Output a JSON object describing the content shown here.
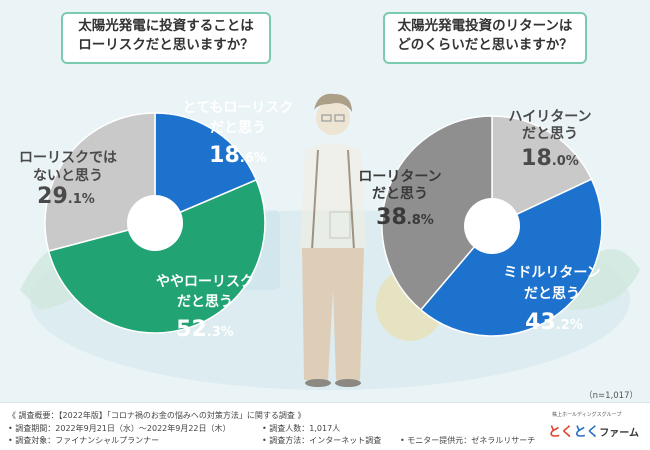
{
  "questions": {
    "q1": "太陽光発電に投資することは\nローリスクだと思いますか？",
    "q2": "太陽光発電投資のリターンは\nどのくらいだと思いますか？"
  },
  "sample_size": "（n=1,017）",
  "chart_data": [
    {
      "type": "pie",
      "donut": true,
      "start_angle_deg": 0,
      "direction": "clockwise",
      "slices": [
        {
          "label_lines": [
            "とてもローリスク",
            "だと思う"
          ],
          "value": 18.6,
          "value_int": "18",
          "value_dec": ".6",
          "color": "#1c72cc",
          "text_color": "#ffffff"
        },
        {
          "label_lines": [
            "ややローリスク",
            "だと思う"
          ],
          "value": 52.3,
          "value_int": "52",
          "value_dec": ".3",
          "color": "#22a374",
          "text_color": "#ffffff"
        },
        {
          "label_lines": [
            "ローリスクでは",
            "ないと思う"
          ],
          "value": 29.1,
          "value_int": "29",
          "value_dec": ".1",
          "color": "#c9c9c9",
          "text_color": "#4a4a4a"
        }
      ]
    },
    {
      "type": "pie",
      "donut": true,
      "start_angle_deg": 0,
      "direction": "clockwise",
      "slices": [
        {
          "label_lines": [
            "ハイリターン",
            "だと思う"
          ],
          "value": 18.0,
          "value_int": "18",
          "value_dec": ".0",
          "color": "#c9c9c9",
          "text_color": "#4a4a4a"
        },
        {
          "label_lines": [
            "ミドルリターン",
            "だと思う"
          ],
          "value": 43.2,
          "value_int": "43",
          "value_dec": ".2",
          "color": "#1c72cc",
          "text_color": "#ffffff"
        },
        {
          "label_lines": [
            "ローリターン",
            "だと思う"
          ],
          "value": 38.8,
          "value_int": "38",
          "value_dec": ".8",
          "color": "#8f8f8f",
          "text_color": "#3a3a3a"
        }
      ]
    }
  ],
  "footer": {
    "title": "《 調査概要：【2022年版】「コロナ禍のお金の悩みへの対策方法」に関する調査 》",
    "period": "• 調査期間：2022年9月21日（水）～2022年9月22日（木）",
    "target": "• 調査対象：ファイナンシャルプランナー",
    "count": "• 調査人数：1,017人",
    "method": "• 調査方法：インターネット調査",
    "monitor": "• モニター提供元：ゼネラルリサーチ"
  },
  "logo": {
    "sub": "株上ホールディングスグループ",
    "k1": "とく",
    "k2": "とく",
    "rest": "ファーム"
  }
}
